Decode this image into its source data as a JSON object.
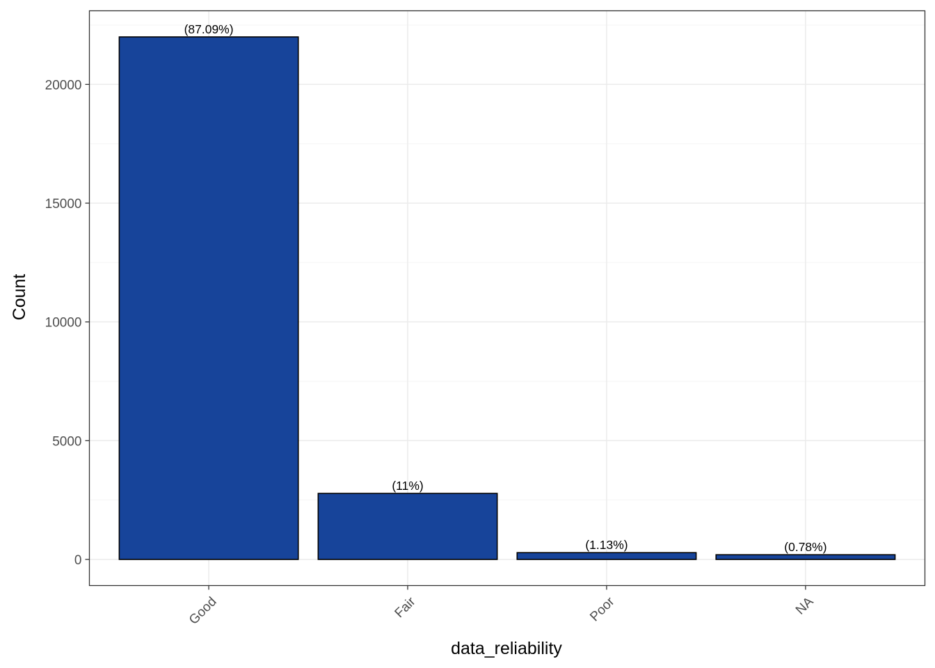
{
  "chart_data": {
    "type": "bar",
    "categories": [
      "Good",
      "Fair",
      "Poor",
      "NA"
    ],
    "values": [
      22000,
      2780,
      285,
      197
    ],
    "labels": [
      "(87.09%)",
      "(11%)",
      "(1.13%)",
      "(0.78%)"
    ],
    "xlabel": "data_reliability",
    "ylabel": "Count",
    "ylim": [
      -1100,
      23100
    ],
    "yticks": [
      0,
      5000,
      10000,
      15000,
      20000
    ],
    "ytick_labels": [
      "0",
      "5000",
      "10000",
      "15000",
      "20000"
    ],
    "grid": true,
    "x_tick_rotation_deg": 45,
    "colors": {
      "bar_fill": "#17449a",
      "bar_stroke": "#000000",
      "grid_major": "#ebebeb",
      "grid_minor": "#f5f5f5",
      "panel_border": "#333333",
      "tick_text": "#4d4d4d"
    }
  }
}
